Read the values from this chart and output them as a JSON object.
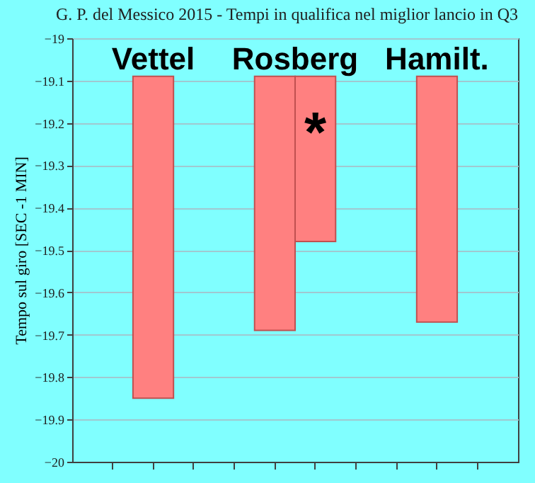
{
  "chart_data": {
    "type": "bar",
    "title": "G. P. del Messico 2015 - Tempi in qualifica nel miglior lancio in Q3",
    "ylabel": "Tempo sul giro  [SEC -1 MIN]",
    "categories": [
      null,
      null,
      null,
      null,
      null,
      null,
      null,
      null,
      null,
      null
    ],
    "base": [
      null,
      -19.09,
      null,
      null,
      -19.09,
      -19.09,
      null,
      null,
      -19.09,
      null
    ],
    "values": [
      null,
      -0.76,
      null,
      null,
      -0.6,
      -0.39,
      null,
      null,
      -0.58,
      null
    ],
    "color": "#ff8080",
    "ylim": [
      -20,
      -19
    ],
    "yticks": [
      -20,
      -19.9,
      -19.8,
      -19.7,
      -19.6,
      -19.5,
      -19.4,
      -19.3,
      -19.2,
      -19.1,
      -19
    ],
    "grid": "y",
    "annotations": [
      "Vettel",
      "Rosberg",
      "Hamilt.",
      "*"
    ]
  }
}
